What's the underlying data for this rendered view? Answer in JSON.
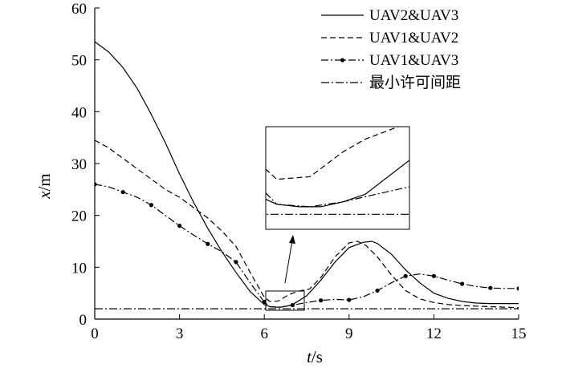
{
  "chart_data": {
    "type": "line",
    "xlabel_var": "t",
    "xlabel_unit": "/s",
    "ylabel_var": "x",
    "ylabel_unit": "/m",
    "xlim": [
      0,
      15
    ],
    "ylim": [
      0,
      60
    ],
    "xticks": [
      "0",
      "3",
      "6",
      "9",
      "12",
      "15"
    ],
    "yticks": [
      "0",
      "10",
      "20",
      "30",
      "40",
      "50",
      "60"
    ],
    "grid": false,
    "legend_position": "top-right",
    "series": [
      {
        "name": "UAV2&UAV3",
        "style": "solid",
        "x": [
          0,
          0.5,
          1,
          1.5,
          2,
          2.5,
          3,
          3.5,
          4,
          4.5,
          5,
          5.5,
          6,
          6.2,
          6.4,
          6.6,
          6.8,
          7,
          7.5,
          8,
          8.5,
          9,
          9.5,
          9.8,
          10,
          10.5,
          11,
          11.5,
          12,
          12.5,
          13,
          13.5,
          14,
          14.5,
          15
        ],
        "y": [
          53.5,
          51.5,
          48.5,
          44.5,
          39.5,
          34,
          28,
          22.5,
          17.5,
          13,
          9,
          5.3,
          2.8,
          2.4,
          2.3,
          2.3,
          2.5,
          2.8,
          4.5,
          7.5,
          11,
          13.8,
          14.8,
          15,
          14.6,
          12.5,
          9.5,
          7,
          5,
          4,
          3.4,
          3.1,
          3,
          3,
          3
        ]
      },
      {
        "name": "UAV1&UAV2",
        "style": "dashed",
        "x": [
          0,
          0.5,
          1,
          1.5,
          2,
          2.5,
          3,
          3.5,
          4,
          4.5,
          5,
          5.5,
          6,
          6.2,
          6.5,
          6.8,
          7,
          7.3,
          7.6,
          8,
          8.5,
          9,
          9.3,
          9.6,
          10,
          10.5,
          11,
          11.5,
          12,
          12.5,
          13,
          13.5,
          14,
          14.5,
          15
        ],
        "y": [
          34.5,
          33,
          31,
          29,
          27,
          25,
          23.5,
          21.5,
          19.5,
          17,
          14,
          9,
          4.2,
          3.4,
          3.5,
          4.5,
          5,
          5.5,
          5.8,
          8,
          12,
          14.7,
          15,
          14.2,
          12,
          8.5,
          5.5,
          3.9,
          3.2,
          2.8,
          2.6,
          2.5,
          2.4,
          2.3,
          2.2
        ]
      },
      {
        "name": "UAV1&UAV3",
        "style": "dashdot-marker",
        "x": [
          0,
          0.5,
          1,
          1.5,
          2,
          2.5,
          3,
          3.5,
          4,
          4.5,
          5,
          5.5,
          6,
          6.2,
          6.5,
          6.8,
          7,
          7.5,
          8,
          8.5,
          9,
          9.5,
          10,
          10.5,
          11,
          11.5,
          12,
          12.5,
          13,
          13.5,
          14,
          14.5,
          15
        ],
        "y": [
          26,
          25.5,
          24.5,
          23.5,
          22,
          20,
          18,
          16.2,
          14.5,
          13,
          11,
          7,
          3.3,
          2.4,
          2.3,
          2.5,
          2.7,
          3.2,
          3.6,
          3.8,
          3.7,
          4.3,
          5.5,
          7,
          8.3,
          8.7,
          8.3,
          7.5,
          6.8,
          6.3,
          6,
          5.9,
          5.9
        ]
      },
      {
        "name": "最小许可间距",
        "style": "dashdot",
        "x": [
          0,
          15
        ],
        "y": [
          2,
          2
        ]
      }
    ],
    "inset": {
      "source_xlim": [
        6.1,
        7.4
      ],
      "source_ylim": [
        1.4,
        5.5
      ]
    }
  }
}
